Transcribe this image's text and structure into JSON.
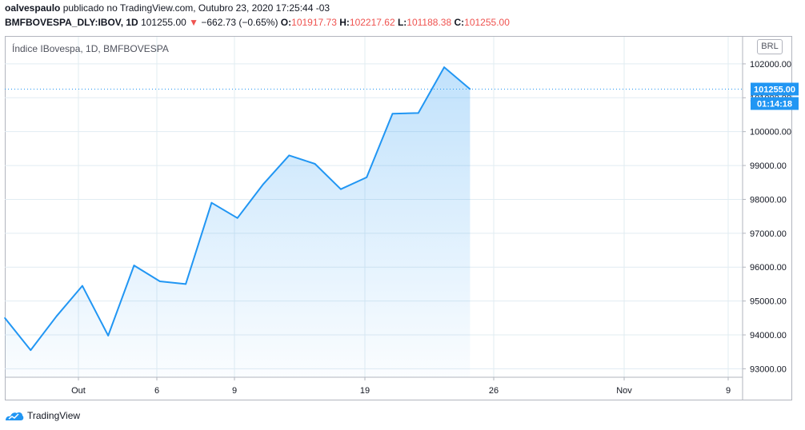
{
  "header": {
    "author": "oalvespaulo",
    "published_text": "publicado no TradingView.com, Outubro 23, 2020 17:25:44 -03",
    "symbol": "BMFBOVESPA_DLY:IBOV, 1D",
    "last_price": "101255.00",
    "change_arrow": "▼",
    "change": "−662.73 (−0.65%)",
    "o_label": "O:",
    "o_value": "101917.73",
    "h_label": "H:",
    "h_value": "102217.62",
    "l_label": "L:",
    "l_value": "101188.38",
    "c_label": "C:",
    "c_value": "101255.00"
  },
  "currency_badge": "BRL",
  "price_tag": {
    "value": "101255.00",
    "countdown": "01:14:18"
  },
  "footer": {
    "brand": "TradingView"
  },
  "colors": {
    "line": "#2196f3",
    "tag": "#2196f3",
    "down": "#ef5350",
    "grid": "#e1ecf2"
  },
  "chart_data": {
    "type": "area",
    "title": "Índice IBovespa, 1D, BMFBOVESPA",
    "xlabel": "",
    "ylabel": "",
    "x_ticks": [
      "Out",
      "6",
      "9",
      "19",
      "26",
      "Nov",
      "9"
    ],
    "y_ticks": [
      "93000.00",
      "94000.00",
      "95000.00",
      "96000.00",
      "97000.00",
      "98000.00",
      "99000.00",
      "100000.00",
      "101000.00",
      "102000.00"
    ],
    "ylim": [
      92750,
      102800
    ],
    "grid": true,
    "series": [
      {
        "values": [
          94500,
          93550,
          94550,
          95450,
          93980,
          96050,
          95580,
          95500,
          97900,
          97450,
          98450,
          99300,
          99050,
          98300,
          98650,
          100530,
          100550,
          101900,
          101255
        ]
      }
    ],
    "last_value": 101255.0
  }
}
